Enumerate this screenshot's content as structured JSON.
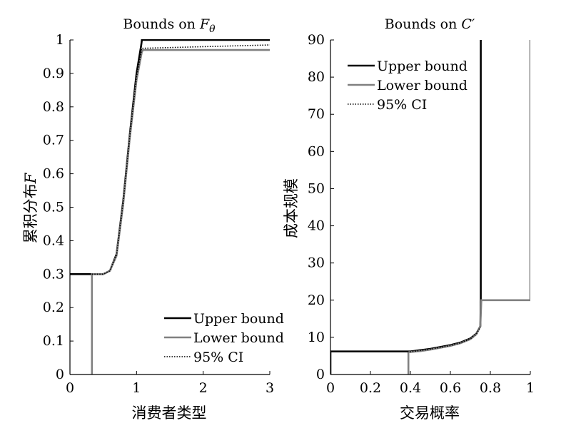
{
  "chart_data": [
    {
      "type": "line",
      "title": "Bounds on F_θ",
      "title_main": "Bounds on ",
      "title_sym": "F",
      "title_sub": "θ",
      "xlabel": "消费者类型",
      "ylabel_main": "累积分布",
      "ylabel_sym": "F",
      "xlim": [
        0,
        3
      ],
      "ylim": [
        0,
        1
      ],
      "xticks": [
        0,
        1,
        2,
        3
      ],
      "yticks": [
        0,
        0.1,
        0.2,
        0.3,
        0.4,
        0.5,
        0.6,
        0.7,
        0.8,
        0.9,
        1
      ],
      "ytick_labels": [
        "0",
        "0.1",
        "0.2",
        "0.3",
        "0.4",
        "0.5",
        "0.6",
        "0.7",
        "0.8",
        "0.9",
        "1"
      ],
      "xtick_labels": [
        "0",
        "1",
        "2",
        "3"
      ],
      "legend_position": "bottom-right",
      "series": [
        {
          "name": "Upper bound",
          "color": "#000000",
          "style": "solid",
          "x": [
            0,
            0.33,
            0.4,
            0.5,
            0.6,
            0.7,
            0.8,
            0.9,
            1.0,
            1.07,
            1.08,
            3
          ],
          "y": [
            0.3,
            0.3,
            0.3,
            0.3,
            0.31,
            0.36,
            0.52,
            0.72,
            0.9,
            0.985,
            1.0,
            1.0
          ]
        },
        {
          "name": "Lower bound",
          "color": "#808080",
          "style": "solid",
          "x": [
            0.33,
            0.33,
            0.4,
            0.5,
            0.6,
            0.7,
            0.8,
            0.9,
            1.0,
            1.08,
            1.1,
            3
          ],
          "y": [
            0,
            0.3,
            0.3,
            0.3,
            0.31,
            0.355,
            0.51,
            0.71,
            0.88,
            0.965,
            0.97,
            0.97
          ]
        },
        {
          "name": "95% CI",
          "color": "#000000",
          "style": "dotted",
          "x": [
            0.33,
            0.4,
            0.5,
            0.6,
            0.7,
            0.8,
            0.9,
            1.0,
            1.08,
            3
          ],
          "y": [
            0.3,
            0.3,
            0.3,
            0.31,
            0.357,
            0.515,
            0.715,
            0.89,
            0.975,
            0.985
          ]
        }
      ]
    },
    {
      "type": "line",
      "title": "Bounds on C′",
      "title_main": "Bounds on ",
      "title_sym": "C′",
      "xlabel": "交易概率",
      "ylabel": "成本规模",
      "xlim": [
        0,
        1
      ],
      "ylim": [
        0,
        90
      ],
      "xticks": [
        0,
        0.2,
        0.4,
        0.6,
        0.8,
        1
      ],
      "xtick_labels": [
        "0",
        "0.2",
        "0.4",
        "0.6",
        "0.8",
        "1"
      ],
      "yticks": [
        0,
        10,
        20,
        30,
        40,
        50,
        60,
        70,
        80,
        90
      ],
      "ytick_labels": [
        "0",
        "10",
        "20",
        "30",
        "40",
        "50",
        "60",
        "70",
        "80",
        "90"
      ],
      "legend_position": "top-left",
      "series": [
        {
          "name": "Upper bound",
          "color": "#000000",
          "style": "solid",
          "x": [
            0,
            0,
            0.1,
            0.2,
            0.3,
            0.4,
            0.5,
            0.6,
            0.65,
            0.7,
            0.73,
            0.75,
            0.752,
            0.752
          ],
          "y": [
            0,
            6.2,
            6.2,
            6.2,
            6.2,
            6.2,
            6.9,
            7.9,
            8.6,
            9.7,
            11,
            13,
            20,
            90
          ]
        },
        {
          "name": "Lower bound",
          "color": "#808080",
          "style": "solid",
          "x": [
            0.39,
            0.39,
            0.45,
            0.5,
            0.6,
            0.65,
            0.7,
            0.73,
            0.75,
            0.755,
            1.0,
            1.0
          ],
          "y": [
            0,
            6.0,
            6.3,
            6.7,
            7.7,
            8.4,
            9.5,
            10.8,
            13,
            20,
            20,
            90
          ]
        },
        {
          "name": "95% CI",
          "color": "#000000",
          "style": "dotted",
          "x": [
            0.01,
            0.1,
            0.2,
            0.3,
            0.4,
            0.5,
            0.6,
            0.65,
            0.7,
            0.73,
            0.75
          ],
          "y": [
            6.1,
            6.1,
            6.1,
            6.1,
            6.1,
            6.8,
            7.8,
            8.5,
            9.6,
            10.9,
            12.8
          ]
        }
      ]
    }
  ]
}
